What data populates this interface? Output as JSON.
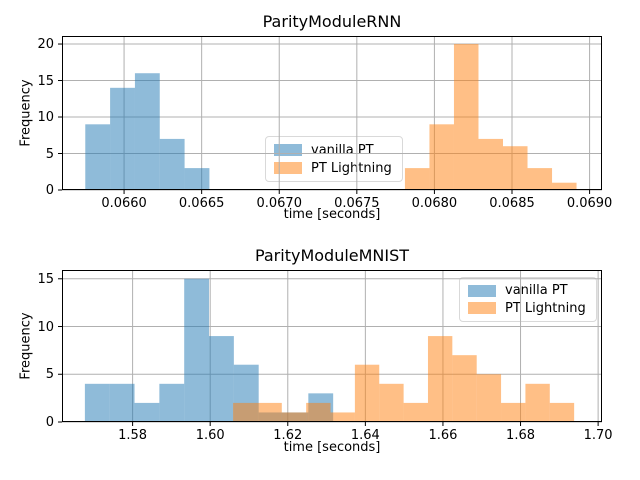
{
  "figure": {
    "background": "#ffffff",
    "grid_color": "#b0b0b0",
    "spine_color": "#000000",
    "text_color": "#000000",
    "overlap_color": "#c79d74",
    "series_alpha": 0.5
  },
  "charts": [
    {
      "title": "ParityModuleRNN",
      "xlabel": "time [seconds]",
      "ylabel": "Frequency",
      "legend": {
        "position": "lower center",
        "entries": [
          {
            "label": "vanilla PT",
            "color": "#1f77b4"
          },
          {
            "label": "PT Lightning",
            "color": "#ff7f0e"
          }
        ]
      },
      "chart_data": {
        "type": "histogram",
        "grid": true,
        "xlim": [
          0.0656,
          0.06908
        ],
        "ylim": [
          0,
          21.1
        ],
        "xticks": {
          "values": [
            0.066,
            0.0665,
            0.067,
            0.0675,
            0.068,
            0.0685,
            0.069
          ],
          "labels": [
            "0.0660",
            "0.0665",
            "0.0670",
            "0.0675",
            "0.0680",
            "0.0685",
            "0.0690"
          ]
        },
        "yticks": {
          "values": [
            0,
            5,
            10,
            15,
            20
          ],
          "labels": [
            "0",
            "5",
            "10",
            "15",
            "20"
          ]
        },
        "series": [
          {
            "name": "vanilla PT",
            "color": "#1f77b4",
            "alpha": 0.5,
            "bin_start": 0.06575,
            "bin_width": 0.00016,
            "counts": [
              9,
              14,
              16,
              7,
              3
            ]
          },
          {
            "name": "PT Lightning",
            "color": "#ff7f0e",
            "alpha": 0.5,
            "bin_start": 0.06781,
            "bin_width": 0.000158,
            "counts": [
              3,
              9,
              20,
              7,
              6,
              3,
              1
            ]
          }
        ]
      }
    },
    {
      "title": "ParityModuleMNIST",
      "xlabel": "time [seconds]",
      "ylabel": "Frequency",
      "legend": {
        "position": "upper right",
        "entries": [
          {
            "label": "vanilla PT",
            "color": "#1f77b4"
          },
          {
            "label": "PT Lightning",
            "color": "#ff7f0e"
          }
        ]
      },
      "chart_data": {
        "type": "histogram",
        "grid": true,
        "xlim": [
          1.5618,
          1.701
        ],
        "ylim": [
          0,
          15.92
        ],
        "xticks": {
          "values": [
            1.58,
            1.6,
            1.62,
            1.64,
            1.66,
            1.68,
            1.7
          ],
          "labels": [
            "1.58",
            "1.60",
            "1.62",
            "1.64",
            "1.66",
            "1.68",
            "1.70"
          ]
        },
        "yticks": {
          "values": [
            0,
            5,
            10,
            15
          ],
          "labels": [
            "0",
            "5",
            "10",
            "15"
          ]
        },
        "series": [
          {
            "name": "vanilla PT",
            "color": "#1f77b4",
            "alpha": 0.5,
            "bin_start": 1.5677,
            "bin_width": 0.0064,
            "counts": [
              4,
              4,
              2,
              4,
              15,
              9,
              6,
              1,
              1,
              3
            ]
          },
          {
            "name": "PT Lightning",
            "color": "#ff7f0e",
            "alpha": 0.5,
            "bin_start": 1.6059,
            "bin_width": 0.00628,
            "counts": [
              2,
              2,
              1,
              2,
              1,
              6,
              4,
              2,
              9,
              7,
              5,
              2,
              4,
              2
            ]
          }
        ]
      }
    }
  ]
}
